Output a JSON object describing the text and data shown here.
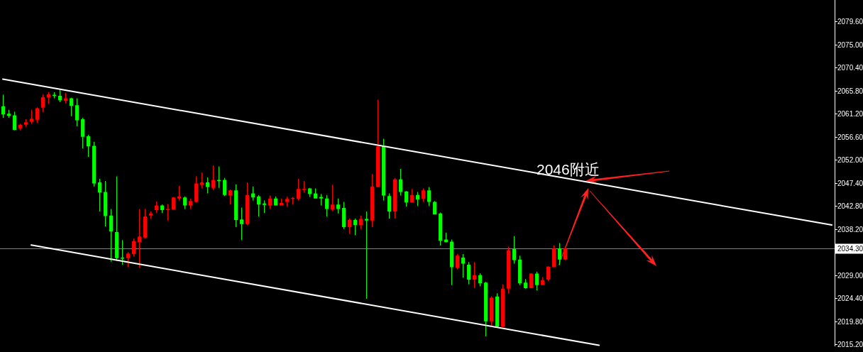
{
  "chart_data": {
    "type": "candlestick",
    "tick_labels": "y",
    "categories": [
      null,
      null,
      null,
      null,
      null,
      null,
      null,
      null,
      null,
      null,
      null,
      null,
      null,
      null,
      null,
      null,
      null,
      null,
      null,
      null,
      null,
      null,
      null,
      null,
      null,
      null,
      null,
      null,
      null,
      null,
      null,
      null,
      null,
      null,
      null,
      null,
      null,
      null,
      null,
      null,
      null,
      null,
      null,
      null,
      null,
      null,
      null,
      null,
      null,
      null,
      null,
      null,
      null,
      null,
      null,
      null,
      null,
      null,
      null,
      null,
      null,
      null,
      null,
      null,
      null,
      null,
      null,
      null,
      null,
      null,
      null,
      null,
      null,
      null,
      null,
      null,
      null,
      null,
      null,
      null,
      null,
      null,
      null,
      null,
      null,
      null,
      null,
      null,
      null,
      null,
      null,
      null,
      null,
      null,
      null,
      null,
      null,
      null,
      null,
      null,
      null,
      null,
      null,
      null,
      null,
      null,
      null,
      null,
      null,
      null,
      null,
      null,
      null,
      null,
      null,
      null,
      null,
      null,
      null,
      null,
      null,
      null,
      null,
      null,
      null,
      null,
      null,
      null,
      null,
      null,
      null,
      null,
      null,
      null,
      null,
      null,
      null,
      null,
      null,
      null,
      null,
      null,
      null,
      null,
      null,
      null,
      null
    ],
    "ohlc": [
      [
        2062.7,
        2065.0,
        2060.4,
        2061.1
      ],
      [
        2061.2,
        2062.0,
        2060.4,
        2060.8
      ],
      [
        2060.9,
        2061.6,
        2057.9,
        2058.0
      ],
      [
        2058.3,
        2059.2,
        2057.9,
        2059.0
      ],
      [
        2059.0,
        2060.1,
        2058.6,
        2059.5
      ],
      [
        2059.6,
        2062.0,
        2059.2,
        2060.2
      ],
      [
        2060.0,
        2062.5,
        2059.4,
        2062.3
      ],
      [
        2062.4,
        2065.1,
        2061.5,
        2064.5
      ],
      [
        2064.5,
        2065.5,
        2063.2,
        2065.1
      ],
      [
        2065.0,
        2065.5,
        2064.3,
        2064.8
      ],
      [
        2064.8,
        2065.9,
        2063.5,
        2063.9
      ],
      [
        2063.8,
        2065.4,
        2063.3,
        2064.3
      ],
      [
        2064.3,
        2064.4,
        2060.7,
        2062.8
      ],
      [
        2062.9,
        2064.3,
        2058.7,
        2059.9
      ],
      [
        2060.1,
        2060.4,
        2054.3,
        2056.6
      ],
      [
        2056.7,
        2057.0,
        2052.6,
        2054.7
      ],
      [
        2054.8,
        2055.6,
        2046.7,
        2047.3
      ],
      [
        2047.5,
        2048.2,
        2041.7,
        2045.5
      ],
      [
        2045.6,
        2047.8,
        2038.7,
        2040.8
      ],
      [
        2040.9,
        2042.2,
        2031.7,
        2037.7
      ],
      [
        2037.6,
        2048.7,
        2031.8,
        2032.4
      ],
      [
        2032.5,
        2036.0,
        2031.1,
        2032.3
      ],
      [
        2032.4,
        2033.6,
        2030.6,
        2033.3
      ],
      [
        2033.2,
        2036.3,
        2032.8,
        2035.8
      ],
      [
        2035.6,
        2042.2,
        2030.5,
        2036.7
      ],
      [
        2036.5,
        2042.2,
        2036.3,
        2040.7
      ],
      [
        2040.9,
        2041.7,
        2040.2,
        2041.3
      ],
      [
        2042.0,
        2043.7,
        2041.4,
        2042.9
      ],
      [
        2042.9,
        2043.1,
        2041.4,
        2042.0
      ],
      [
        2042.0,
        2043.2,
        2039.9,
        2042.2
      ],
      [
        2042.1,
        2044.6,
        2042.1,
        2044.5
      ],
      [
        2044.3,
        2046.8,
        2043.9,
        2044.7
      ],
      [
        2044.5,
        2044.7,
        2042.2,
        2042.9
      ],
      [
        2042.9,
        2044.3,
        2042.2,
        2043.8
      ],
      [
        2043.6,
        2048.7,
        2043.5,
        2047.3
      ],
      [
        2047.0,
        2049.5,
        2046.3,
        2047.5
      ],
      [
        2047.5,
        2048.5,
        2045.3,
        2046.6
      ],
      [
        2046.4,
        2050.9,
        2046.1,
        2048.0
      ],
      [
        2048.0,
        2050.7,
        2046.4,
        2047.8
      ],
      [
        2048.0,
        2048.4,
        2044.8,
        2045.0
      ],
      [
        2044.9,
        2046.1,
        2043.1,
        2045.9
      ],
      [
        2045.9,
        2047.1,
        2038.6,
        2040.0
      ],
      [
        2040.1,
        2042.5,
        2036.0,
        2039.2
      ],
      [
        2039.2,
        2047.5,
        2039.0,
        2045.0
      ],
      [
        2045.3,
        2046.7,
        2043.9,
        2044.5
      ],
      [
        2044.7,
        2045.0,
        2040.7,
        2043.1
      ],
      [
        2043.3,
        2043.9,
        2041.4,
        2043.0
      ],
      [
        2042.9,
        2044.9,
        2042.2,
        2044.3
      ],
      [
        2044.3,
        2044.7,
        2042.9,
        2042.9
      ],
      [
        2042.9,
        2044.3,
        2042.9,
        2043.4
      ],
      [
        2043.6,
        2044.7,
        2042.7,
        2044.2
      ],
      [
        2044.2,
        2044.6,
        2043.1,
        2044.4
      ],
      [
        2044.2,
        2048.2,
        2043.9,
        2046.2
      ],
      [
        2046.0,
        2047.8,
        2045.5,
        2046.2
      ],
      [
        2046.3,
        2046.4,
        2044.6,
        2045.2
      ],
      [
        2045.3,
        2046.3,
        2044.3,
        2044.3
      ],
      [
        2044.6,
        2045.2,
        2042.9,
        2044.3
      ],
      [
        2044.3,
        2045.0,
        2040.7,
        2042.2
      ],
      [
        2042.1,
        2047.0,
        2041.8,
        2043.1
      ],
      [
        2043.1,
        2044.3,
        2041.3,
        2042.2
      ],
      [
        2042.4,
        2043.6,
        2038.2,
        2038.6
      ],
      [
        2038.6,
        2040.3,
        2037.2,
        2040.0
      ],
      [
        2040.0,
        2040.3,
        2037.0,
        2039.0
      ],
      [
        2039.0,
        2040.9,
        2038.2,
        2040.2
      ],
      [
        2040.2,
        2041.7,
        2024.3,
        2039.9
      ],
      [
        2039.9,
        2049.2,
        2038.6,
        2046.7
      ],
      [
        2046.6,
        2064.0,
        2046.6,
        2054.7
      ],
      [
        2054.7,
        2056.2,
        2043.9,
        2044.9
      ],
      [
        2044.8,
        2045.3,
        2040.3,
        2041.7
      ],
      [
        2041.7,
        2048.4,
        2040.3,
        2048.1
      ],
      [
        2048.1,
        2050.2,
        2044.9,
        2045.6
      ],
      [
        2045.7,
        2045.8,
        2042.7,
        2043.5
      ],
      [
        2043.5,
        2046.2,
        2043.5,
        2045.0
      ],
      [
        2045.0,
        2045.6,
        2042.8,
        2044.1
      ],
      [
        2044.2,
        2046.3,
        2043.6,
        2045.9
      ],
      [
        2045.9,
        2046.6,
        2042.8,
        2043.6
      ],
      [
        2043.6,
        2043.8,
        2041.1,
        2041.1
      ],
      [
        2041.3,
        2041.5,
        2034.9,
        2035.9
      ],
      [
        2036.1,
        2037.5,
        2035.5,
        2035.6
      ],
      [
        2035.7,
        2036.1,
        2027.0,
        2030.6
      ],
      [
        2030.5,
        2033.2,
        2030.2,
        2032.9
      ],
      [
        2032.5,
        2033.2,
        2028.5,
        2031.3
      ],
      [
        2031.1,
        2031.6,
        2027.2,
        2028.1
      ],
      [
        2028.1,
        2031.6,
        2026.4,
        2029.0
      ],
      [
        2029.0,
        2029.4,
        2026.8,
        2027.4
      ],
      [
        2027.5,
        2027.7,
        2016.8,
        2019.8
      ],
      [
        2019.8,
        2024.8,
        2018.9,
        2024.5
      ],
      [
        2024.7,
        2025.4,
        2018.6,
        2018.7
      ],
      [
        2018.7,
        2027.2,
        2018.6,
        2026.3
      ],
      [
        2026.3,
        2034.7,
        2025.4,
        2034.0
      ],
      [
        2034.2,
        2036.8,
        2031.3,
        2032.0
      ],
      [
        2032.1,
        2032.9,
        2027.0,
        2027.4
      ],
      [
        2027.5,
        2028.2,
        2026.3,
        2026.4
      ],
      [
        2026.4,
        2029.4,
        2026.4,
        2029.3
      ],
      [
        2029.3,
        2029.7,
        2026.0,
        2027.0
      ],
      [
        2027.0,
        2028.6,
        2027.0,
        2028.0
      ],
      [
        2028.1,
        2030.8,
        2027.8,
        2030.7
      ],
      [
        2030.6,
        2034.9,
        2030.6,
        2034.3
      ],
      [
        2034.3,
        2035.4,
        2031.0,
        2032.1
      ],
      [
        2032.1,
        2034.7,
        2032.0,
        2034.3
      ],
      null,
      null,
      null,
      null,
      null,
      null,
      null,
      null,
      null,
      null,
      null,
      null,
      null,
      null,
      null,
      null,
      null,
      null,
      null,
      null,
      null,
      null,
      null,
      null,
      null,
      null,
      null,
      null,
      null,
      null,
      null,
      null,
      null,
      null,
      null,
      null,
      null,
      null,
      null,
      null,
      null,
      null,
      null,
      null,
      null,
      null,
      null
    ],
    "colors": [
      "#00ff00",
      "#00ff00",
      "#00ff00",
      "#ff0000",
      "#ff0000",
      "#ff0000",
      "#ff0000",
      "#ff0000",
      "#ff0000",
      "#00ff00",
      "#00ff00",
      "#ff0000",
      "#00ff00",
      "#00ff00",
      "#00ff00",
      "#00ff00",
      "#00ff00",
      "#00ff00",
      "#00ff00",
      "#00ff00",
      "#00ff00",
      "#00ff00",
      "#ff0000",
      "#ff0000",
      "#ff0000",
      "#ff0000",
      "#ff0000",
      "#ff0000",
      "#00ff00",
      "#ff0000",
      "#ff0000",
      "#ff0000",
      "#00ff00",
      "#ff0000",
      "#ff0000",
      "#ff0000",
      "#00ff00",
      "#ff0000",
      "#00ff00",
      "#00ff00",
      "#ff0000",
      "#00ff00",
      "#00ff00",
      "#ff0000",
      "#00ff00",
      "#00ff00",
      "#00ff00",
      "#ff0000",
      "#00ff00",
      "#ff0000",
      "#ff0000",
      "#ff0000",
      "#ff0000",
      "#ff0000",
      "#00ff00",
      "#00ff00",
      "#00ff00",
      "#00ff00",
      "#ff0000",
      "#00ff00",
      "#00ff00",
      "#ff0000",
      "#00ff00",
      "#ff0000",
      "#00ff00",
      "#ff0000",
      "#ff0000",
      "#00ff00",
      "#00ff00",
      "#ff0000",
      "#00ff00",
      "#00ff00",
      "#ff0000",
      "#00ff00",
      "#ff0000",
      "#00ff00",
      "#00ff00",
      "#00ff00",
      "#00ff00",
      "#00ff00",
      "#ff0000",
      "#00ff00",
      "#00ff00",
      "#ff0000",
      "#00ff00",
      "#00ff00",
      "#ff0000",
      "#00ff00",
      "#ff0000",
      "#ff0000",
      "#00ff00",
      "#00ff00",
      "#00ff00",
      "#ff0000",
      "#00ff00",
      "#ff0000",
      "#ff0000",
      "#ff0000",
      "#00ff00",
      "#ff0000",
      null,
      null,
      null,
      null,
      null,
      null,
      null,
      null,
      null,
      null,
      null,
      null,
      null,
      null,
      null,
      null,
      null,
      null,
      null,
      null,
      null,
      null,
      null,
      null,
      null,
      null,
      null,
      null,
      null,
      null,
      null,
      null,
      null,
      null,
      null,
      null,
      null,
      null,
      null,
      null,
      null,
      null,
      null,
      null,
      null,
      null,
      null
    ],
    "series": [
      {
        "type": "line",
        "color": "#ffffff",
        "values": [
          2068.1,
          null,
          null,
          null,
          null,
          null,
          null,
          null,
          null,
          null,
          null,
          null,
          null,
          null,
          null,
          null,
          null,
          null,
          null,
          null,
          null,
          null,
          null,
          null,
          null,
          null,
          null,
          null,
          null,
          null,
          null,
          null,
          null,
          null,
          null,
          null,
          null,
          null,
          null,
          null,
          null,
          null,
          null,
          null,
          null,
          null,
          null,
          null,
          null,
          null,
          null,
          null,
          null,
          null,
          null,
          null,
          null,
          null,
          null,
          null,
          null,
          null,
          null,
          null,
          null,
          null,
          null,
          null,
          null,
          null,
          null,
          null,
          null,
          null,
          null,
          null,
          null,
          null,
          null,
          null,
          null,
          null,
          null,
          null,
          null,
          null,
          null,
          null,
          null,
          null,
          null,
          null,
          null,
          null,
          null,
          null,
          null,
          null,
          null,
          null,
          null,
          null,
          null,
          null,
          null,
          null,
          null,
          null,
          null,
          null,
          null,
          null,
          null,
          null,
          null,
          null,
          null,
          null,
          null,
          null,
          null,
          null,
          null,
          null,
          null,
          null,
          null,
          null,
          null,
          null,
          null,
          null,
          null,
          null,
          null,
          null,
          null,
          null,
          null,
          null,
          null,
          null,
          null,
          null,
          null,
          null,
          2039.0
        ]
      },
      {
        "type": "line",
        "color": "#ffffff",
        "values": [
          null,
          null,
          null,
          null,
          null,
          2035.0,
          null,
          null,
          null,
          null,
          null,
          null,
          null,
          null,
          null,
          null,
          null,
          null,
          null,
          null,
          null,
          null,
          null,
          null,
          null,
          null,
          null,
          null,
          null,
          null,
          null,
          null,
          null,
          null,
          null,
          null,
          null,
          null,
          null,
          null,
          null,
          null,
          null,
          null,
          null,
          null,
          null,
          null,
          null,
          null,
          null,
          null,
          null,
          null,
          null,
          null,
          null,
          null,
          null,
          null,
          null,
          null,
          null,
          null,
          null,
          null,
          null,
          null,
          null,
          null,
          null,
          null,
          null,
          null,
          null,
          null,
          null,
          null,
          null,
          null,
          null,
          null,
          null,
          null,
          null,
          null,
          null,
          null,
          null,
          null,
          null,
          null,
          null,
          null,
          null,
          null,
          null,
          null,
          null,
          null,
          null,
          null,
          null,
          null,
          null,
          2015.0,
          null,
          null,
          null,
          null,
          null,
          null,
          null,
          null,
          null,
          null,
          null,
          null,
          null,
          null,
          null,
          null,
          null,
          null,
          null,
          null,
          null,
          null,
          null,
          null,
          null,
          null,
          null,
          null,
          null,
          null,
          null,
          null,
          null,
          null,
          null,
          null,
          null,
          null,
          null,
          null,
          null
        ]
      }
    ],
    "ylim": [
      2014.8,
      2083.9
    ],
    "yticks": [
      {
        "value": 2079.6,
        "label": "2079.60"
      },
      {
        "value": 2075.0,
        "label": "2075.00"
      },
      {
        "value": 2070.4,
        "label": "2070.40"
      },
      {
        "value": 2065.8,
        "label": "2065.80"
      },
      {
        "value": 2061.2,
        "label": "2061.20"
      },
      {
        "value": 2056.6,
        "label": "2056.60"
      },
      {
        "value": 2052.0,
        "label": "2052.00"
      },
      {
        "value": 2047.4,
        "label": "2047.40"
      },
      {
        "value": 2042.8,
        "label": "2042.80"
      },
      {
        "value": 2038.2,
        "label": "2038.20"
      },
      {
        "value": 2033.6,
        "label": null
      },
      {
        "value": 2029.0,
        "label": "2029.00"
      },
      {
        "value": 2024.4,
        "label": "2024.40"
      },
      {
        "value": 2019.8,
        "label": "2019.80"
      },
      {
        "value": 2015.2,
        "label": "2015.20"
      }
    ],
    "ref_lines": [
      {
        "axis": "y",
        "value": 2034.3,
        "label": "2034.30",
        "color": "#808080"
      }
    ],
    "annotations": [
      "2046附近"
    ]
  }
}
